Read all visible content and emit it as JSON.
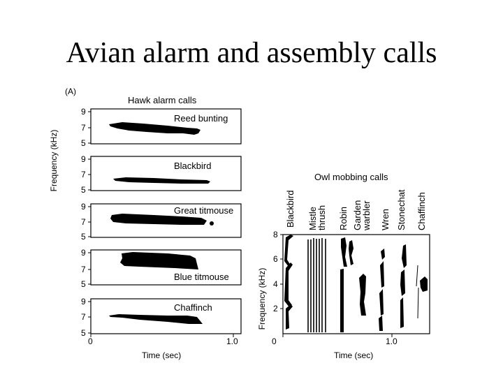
{
  "slide": {
    "title": "Avian alarm and assembly calls"
  },
  "panel_a": {
    "label": "(A)",
    "title": "Hawk alarm calls",
    "y_axis_label": "Frequency (kHz)",
    "x_axis_label": "Time (sec)",
    "x_ticks": [
      "0",
      "1.0"
    ],
    "y_ticks": [
      "9",
      "7",
      "5"
    ],
    "species": [
      "Reed bunting",
      "Blackbird",
      "Great titmouse",
      "Blue titmouse",
      "Chaffinch"
    ]
  },
  "panel_b": {
    "title": "Owl mobbing calls",
    "y_axis_label": "Frequency (kHz)",
    "x_axis_label": "Time (sec)",
    "x_ticks": [
      "0",
      "1.0"
    ],
    "y_ticks": [
      "8",
      "6",
      "4",
      "2"
    ],
    "species": [
      "Blackbird",
      "Mistle thrush",
      "Robin",
      "Garden warbler",
      "Wren",
      "Stonechat",
      "Chaffinch"
    ]
  },
  "colors": {
    "ink": "#000000",
    "background": "#ffffff"
  }
}
